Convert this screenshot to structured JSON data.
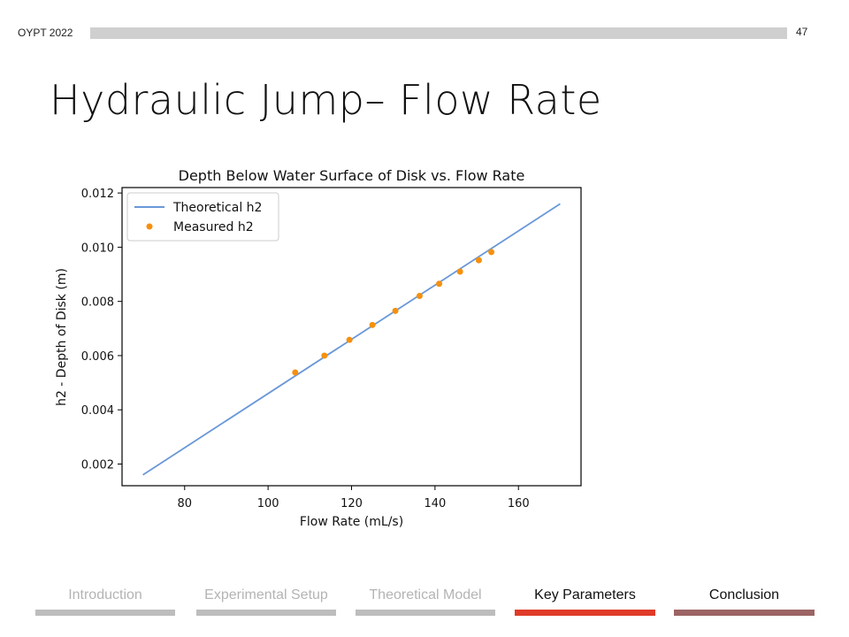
{
  "header": {
    "conference": "OYPT 2022",
    "page_number": "47"
  },
  "slide": {
    "title": "Hydraulic Jump– Flow Rate"
  },
  "chart_data": {
    "type": "line",
    "title": "Depth Below Water Surface of Disk vs. Flow Rate",
    "xlabel": "Flow Rate (mL/s)",
    "ylabel": "h2 - Depth of Disk (m)",
    "xlim": [
      65,
      175
    ],
    "ylim": [
      0.0012,
      0.0122
    ],
    "xticks": [
      80,
      100,
      120,
      140,
      160
    ],
    "xtick_labels": [
      "80",
      "100",
      "120",
      "140",
      "160"
    ],
    "yticks": [
      0.002,
      0.004,
      0.006,
      0.008,
      0.01,
      0.012
    ],
    "ytick_labels": [
      "0.002",
      "0.004",
      "0.006",
      "0.008",
      "0.010",
      "0.012"
    ],
    "legend": {
      "placement": "top-left",
      "entries": [
        "Theoretical h2",
        "Measured h2"
      ]
    },
    "series": [
      {
        "name": "Theoretical h2",
        "kind": "line",
        "color": "#6a98d8",
        "x": [
          70,
          170
        ],
        "y": [
          0.0016,
          0.0116
        ]
      },
      {
        "name": "Measured h2",
        "kind": "scatter",
        "color": "#f5900e",
        "x": [
          106.5,
          113.5,
          119.5,
          125,
          130.5,
          136.3,
          141,
          146,
          150.5,
          153.5
        ],
        "y": [
          0.00538,
          0.006,
          0.00658,
          0.00713,
          0.00765,
          0.0082,
          0.00865,
          0.0091,
          0.00952,
          0.00982
        ]
      }
    ],
    "grid": false
  },
  "nav": {
    "items": [
      {
        "label": "Introduction",
        "color": "#bdbdbd",
        "text_color": "#b4b4b4"
      },
      {
        "label": "Experimental Setup",
        "color": "#bdbdbd",
        "text_color": "#b4b4b4"
      },
      {
        "label": "Theoretical Model",
        "color": "#bdbdbd",
        "text_color": "#b4b4b4"
      },
      {
        "label": "Key Parameters",
        "color": "#e03a28",
        "text_color": "#111111"
      },
      {
        "label": "Conclusion",
        "color": "#9c6464",
        "text_color": "#111111"
      }
    ]
  }
}
